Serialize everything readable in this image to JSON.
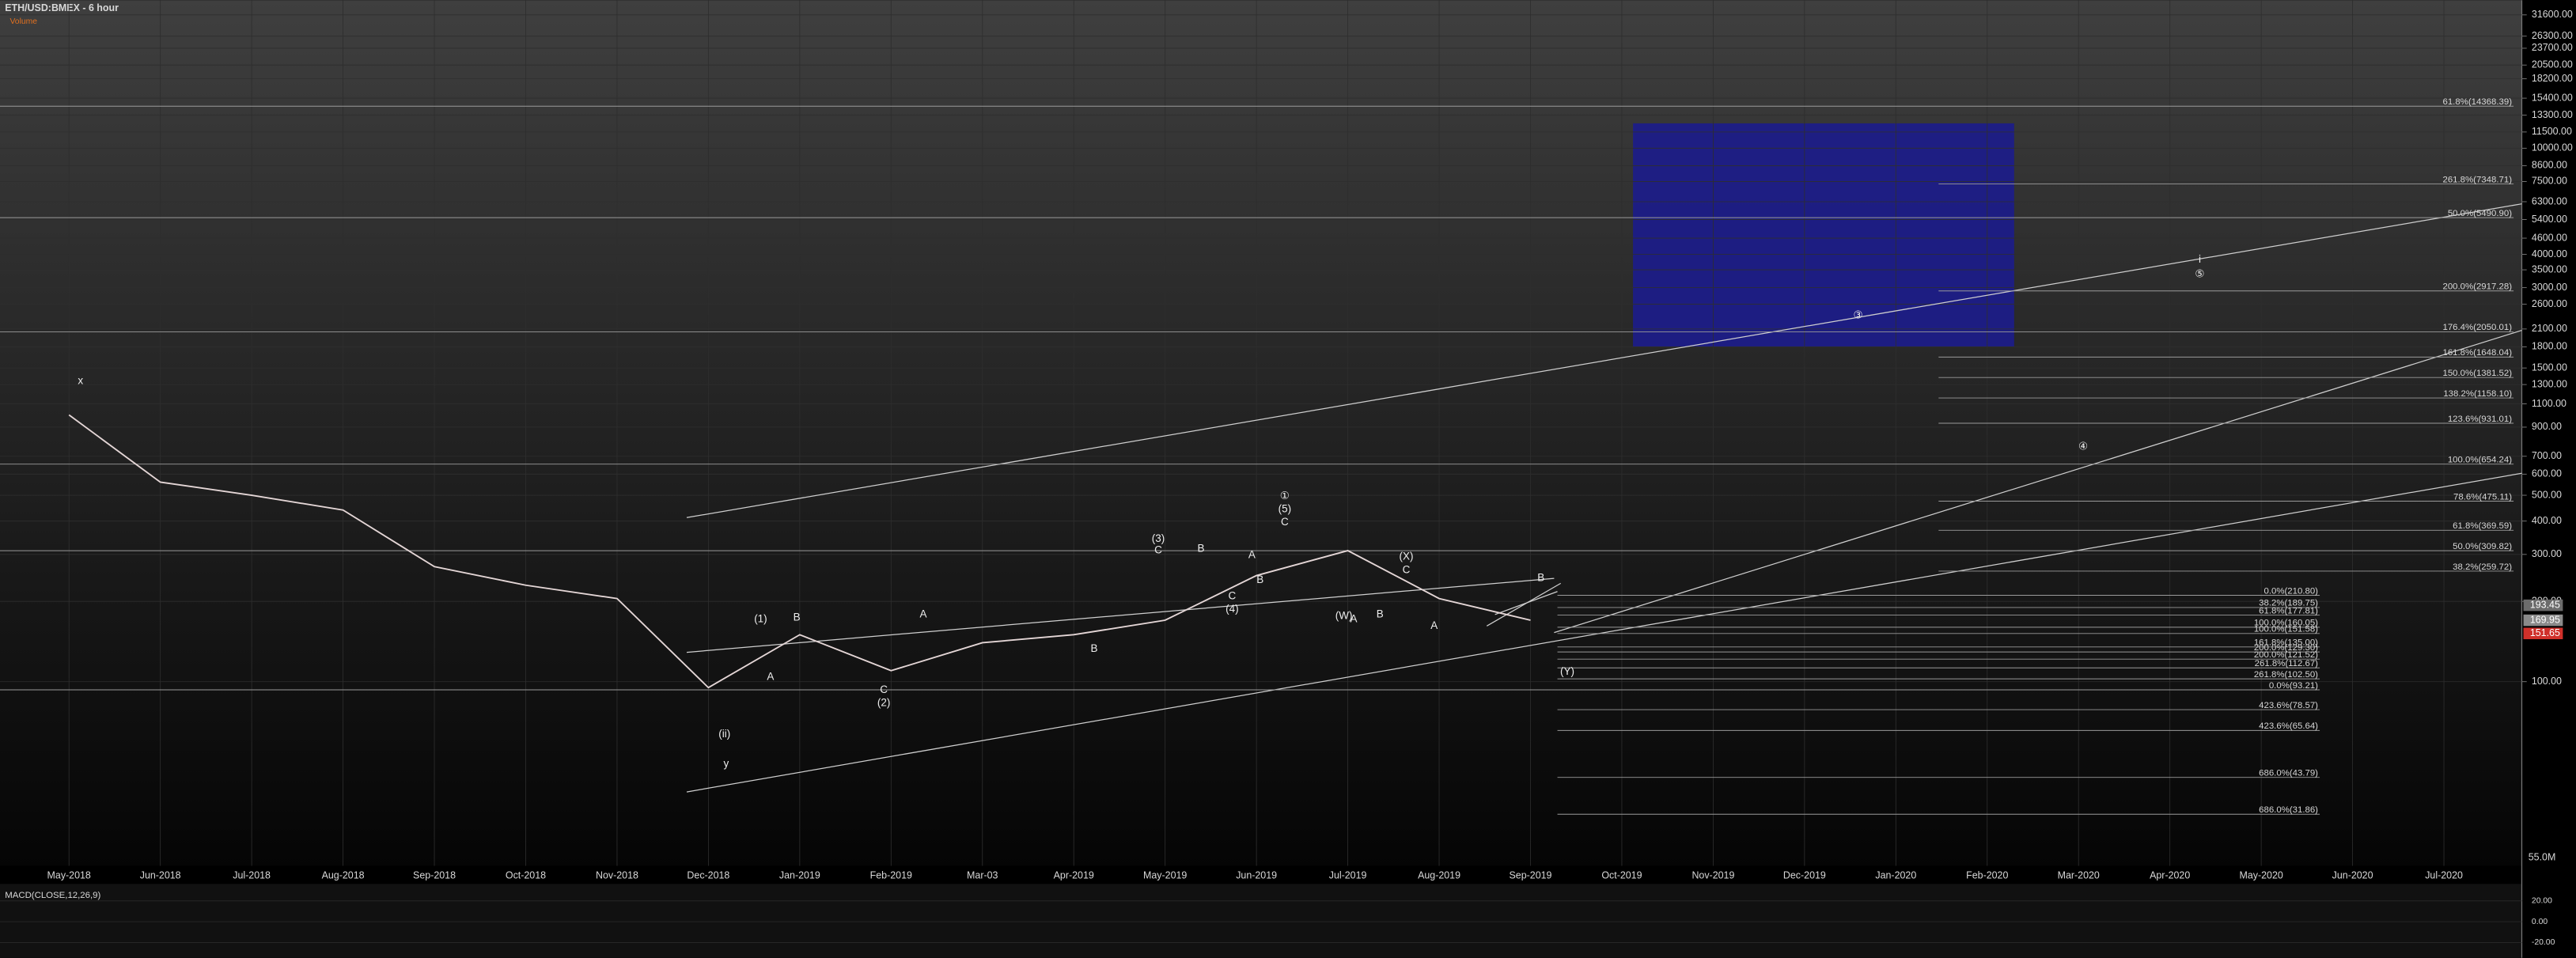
{
  "header": {
    "title": "ETH/USD:BMEX - 6 hour",
    "volume_label": "Volume"
  },
  "chart_data": {
    "type": "line",
    "log_scale": true,
    "grid": true,
    "categories": [
      "May-2018",
      "Jun-2018",
      "Jul-2018",
      "Aug-2018",
      "Sep-2018",
      "Oct-2018",
      "Nov-2018",
      "Dec-2018",
      "Jan-2019",
      "Feb-2019",
      "Mar-03",
      "Apr-2019",
      "May-2019",
      "Jun-2019",
      "Jul-2019",
      "Aug-2019",
      "Sep-2019",
      "Oct-2019",
      "Nov-2019",
      "Dec-2019",
      "Jan-2020",
      "Feb-2020",
      "Mar-2020",
      "Apr-2020",
      "May-2020",
      "Jun-2020",
      "Jul-2020"
    ],
    "color": "#e4d6d6",
    "values": [
      1000,
      560,
      500,
      440,
      270,
      230,
      205,
      95,
      150,
      110,
      140,
      150,
      170,
      250,
      310,
      205,
      170,
      null,
      null,
      null,
      null,
      null,
      null,
      null,
      null,
      null,
      null
    ],
    "ylim": [
      20.4,
      35890
    ],
    "yticks": [
      {
        "value": 31600,
        "label": "31600.00"
      },
      {
        "value": 26300,
        "label": "26300.00"
      },
      {
        "value": 23700,
        "label": "23700.00"
      },
      {
        "value": 20500,
        "label": "20500.00"
      },
      {
        "value": 18200,
        "label": "18200.00"
      },
      {
        "value": 15400,
        "label": "15400.00"
      },
      {
        "value": 13300,
        "label": "13300.00"
      },
      {
        "value": 11500,
        "label": "11500.00"
      },
      {
        "value": 10000,
        "label": "10000.00"
      },
      {
        "value": 8600,
        "label": "8600.00"
      },
      {
        "value": 7500,
        "label": "7500.00"
      },
      {
        "value": 6300,
        "label": "6300.00"
      },
      {
        "value": 5400,
        "label": "5400.00"
      },
      {
        "value": 4600,
        "label": "4600.00"
      },
      {
        "value": 4000,
        "label": "4000.00"
      },
      {
        "value": 3500,
        "label": "3500.00"
      },
      {
        "value": 3000,
        "label": "3000.00"
      },
      {
        "value": 2600,
        "label": "2600.00"
      },
      {
        "value": 2100,
        "label": "2100.00"
      },
      {
        "value": 1800,
        "label": "1800.00"
      },
      {
        "value": 1500,
        "label": "1500.00"
      },
      {
        "value": 1300,
        "label": "1300.00"
      },
      {
        "value": 1100,
        "label": "1100.00"
      },
      {
        "value": 900,
        "label": "900.00"
      },
      {
        "value": 700,
        "label": "700.00"
      },
      {
        "value": 600,
        "label": "600.00"
      },
      {
        "value": 500,
        "label": "500.00"
      },
      {
        "value": 400,
        "label": "400.00"
      },
      {
        "value": 300,
        "label": "300.00"
      },
      {
        "value": 200,
        "label": "200.00"
      },
      {
        "value": 100,
        "label": "100.00"
      }
    ],
    "price_tags": [
      193.45,
      169.95,
      151.65
    ],
    "price_tag_colors": [
      "#6b6b6b",
      "#8a8a8a",
      "#d0302a"
    ],
    "fib_levels": [
      {
        "value": 14368.39,
        "label": "61.8%(14368.39)"
      },
      {
        "value": 7348.71,
        "label": "261.8%(7348.71)"
      },
      {
        "value": 5490.9,
        "label": "50.0%(5490.90)"
      },
      {
        "value": 2917.28,
        "label": "200.0%(2917.28)"
      },
      {
        "value": 2050.01,
        "label": "176.4%(2050.01)"
      },
      {
        "value": 1648.04,
        "label": "161.8%(1648.04)"
      },
      {
        "value": 1381.52,
        "label": "150.0%(1381.52)"
      },
      {
        "value": 1158.1,
        "label": "138.2%(1158.10)"
      },
      {
        "value": 931.01,
        "label": "123.6%(931.01)"
      },
      {
        "value": 654.24,
        "label": "100.0%(654.24)"
      },
      {
        "value": 475.11,
        "label": "78.6%(475.11)"
      },
      {
        "value": 369.59,
        "label": "61.8%(369.59)"
      },
      {
        "value": 309.82,
        "label": "50.0%(309.82)"
      },
      {
        "value": 259.72,
        "label": "38.2%(259.72)"
      },
      {
        "value": 210.8,
        "label": "0.0%(210.80)"
      },
      {
        "value": 189.75,
        "label": "38.2%(189.75)"
      },
      {
        "value": 177.81,
        "label": "61.8%(177.81)"
      },
      {
        "value": 160.05,
        "label": "100.0%(160.05)"
      },
      {
        "value": 151.58,
        "label": "100.0%(151.58)"
      },
      {
        "value": 135.0,
        "label": "161.8%(135.00)"
      },
      {
        "value": 129.3,
        "label": "200.0%(129.30)"
      },
      {
        "value": 121.52,
        "label": "200.0%(121.52)"
      },
      {
        "value": 112.67,
        "label": "261.8%(112.67)"
      },
      {
        "value": 102.5,
        "label": "261.8%(102.50)"
      },
      {
        "value": 93.21,
        "label": "0.0%(93.21)"
      },
      {
        "value": 78.57,
        "label": "423.6%(78.57)"
      },
      {
        "value": 65.64,
        "label": "423.6%(65.64)"
      },
      {
        "value": 43.79,
        "label": "686.0%(43.79)"
      },
      {
        "value": 31.86,
        "label": "686.0%(31.86)"
      }
    ],
    "annotations": [
      "x",
      "y",
      "(ii)",
      "(1)",
      "B",
      "A",
      "(2)",
      "C",
      "A",
      "B",
      "(3)",
      "C",
      "B",
      "A",
      "C",
      "(4)",
      "B",
      "①",
      "(5)",
      "C",
      "A",
      "(X)",
      "C",
      "(W)",
      "B",
      "A",
      "B",
      "(Y)",
      "③",
      "i",
      "⑤",
      "④"
    ],
    "volume_tick": {
      "value": 55000000,
      "label": "55.0M"
    },
    "macd": {
      "title": "MACD(CLOSE,12,26,9)",
      "ylim": [
        -30,
        30
      ],
      "yticks": [
        {
          "value": 20,
          "label": "20.00"
        },
        {
          "value": 0,
          "label": "0.00"
        },
        {
          "value": -20,
          "label": "-20.00"
        }
      ]
    }
  }
}
